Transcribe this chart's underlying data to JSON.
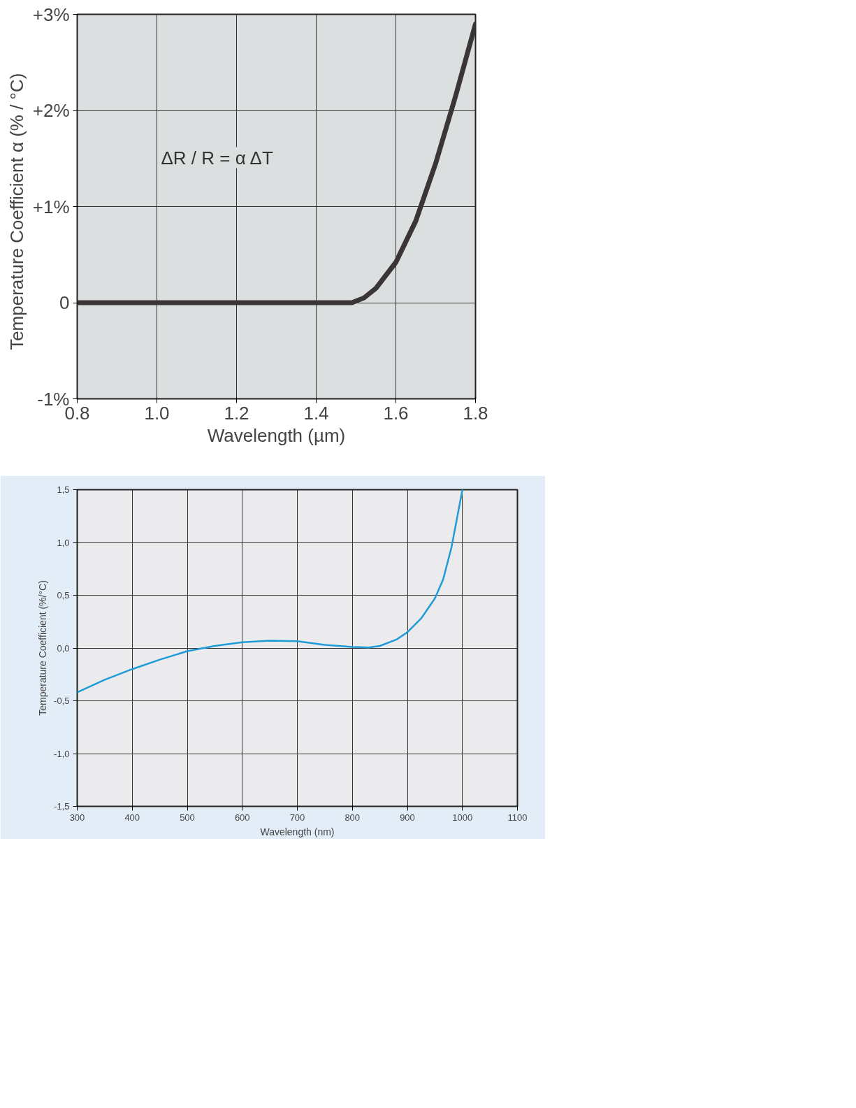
{
  "chart_data": [
    {
      "type": "line",
      "xlabel": "Wavelength (µm)",
      "ylabel": "Temperature Coefficient  α  (% / °C)",
      "annotations": [
        "ΔR / R  =  α  ΔT"
      ],
      "xlim": [
        0.8,
        1.8
      ],
      "ylim": [
        -1,
        3
      ],
      "xticks": [
        0.8,
        {
          "value": 1.0,
          "label": "1.0"
        },
        1.2,
        1.4,
        1.6,
        1.8
      ],
      "yticks": [
        {
          "value": -1,
          "label": "-1%"
        },
        0,
        {
          "value": 1,
          "label": "+1%"
        },
        {
          "value": 2,
          "label": "+2%"
        },
        {
          "value": 3,
          "label": "+3%"
        }
      ],
      "grid": true,
      "series": [
        {
          "color": "#3a3536",
          "x": [
            0.8,
            1.0,
            1.2,
            1.4,
            1.49,
            1.52,
            1.55,
            1.6,
            1.65,
            1.7,
            1.75,
            1.8
          ],
          "values": [
            0,
            0,
            0,
            0,
            0,
            0.05,
            0.15,
            0.42,
            0.85,
            1.45,
            2.15,
            2.9
          ]
        }
      ]
    },
    {
      "type": "line",
      "xlabel": "Wavelength (nm)",
      "ylabel": "Temperature Coefficient (%/°C)",
      "xlim": [
        300,
        1100
      ],
      "ylim": [
        -1.5,
        1.5
      ],
      "xticks": [
        300,
        400,
        500,
        600,
        700,
        800,
        900,
        1000,
        1100
      ],
      "yticks": [
        {
          "value": -1.5,
          "label": "-1,5"
        },
        {
          "value": -1.0,
          "label": "-1,0"
        },
        {
          "value": -0.5,
          "label": "-0,5"
        },
        {
          "value": 0,
          "label": "0,0"
        },
        {
          "value": 0.5,
          "label": "0,5"
        },
        {
          "value": 1.0,
          "label": "1,0"
        },
        {
          "value": 1.5,
          "label": "1,5"
        }
      ],
      "grid": true,
      "series": [
        {
          "color": "#1f9bd7",
          "x": [
            300,
            350,
            400,
            450,
            500,
            550,
            600,
            650,
            700,
            750,
            800,
            830,
            850,
            880,
            900,
            925,
            950,
            965,
            980,
            1000
          ],
          "values": [
            -0.42,
            -0.3,
            -0.2,
            -0.11,
            -0.03,
            0.02,
            0.055,
            0.07,
            0.065,
            0.03,
            0.01,
            0.005,
            0.02,
            0.08,
            0.15,
            0.28,
            0.47,
            0.65,
            0.95,
            1.5
          ]
        }
      ]
    }
  ]
}
